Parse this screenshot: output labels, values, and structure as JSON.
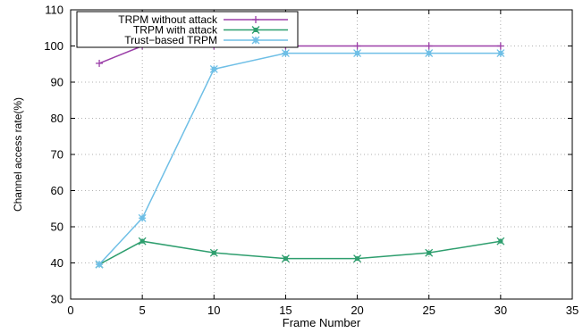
{
  "chart_data": {
    "type": "line",
    "title": "",
    "xlabel": "Frame Number",
    "ylabel": "Channel access rate(%)",
    "xlim": [
      0,
      35
    ],
    "ylim": [
      30,
      110
    ],
    "xticks": [
      0,
      5,
      10,
      15,
      20,
      25,
      30,
      35
    ],
    "yticks": [
      30,
      40,
      50,
      60,
      70,
      80,
      90,
      100,
      110
    ],
    "grid": true,
    "legend_position": "top-left",
    "x": [
      2,
      5,
      10,
      15,
      20,
      25,
      30
    ],
    "series": [
      {
        "name": "TRPM without attack",
        "marker": "plus",
        "color": "#9b3fa8",
        "values": [
          95.2,
          100,
          100,
          100,
          100,
          100,
          100
        ]
      },
      {
        "name": "TRPM with attack",
        "marker": "cross",
        "color": "#2e9e6e",
        "values": [
          39.6,
          46.0,
          42.8,
          41.2,
          41.2,
          42.8,
          46.0
        ]
      },
      {
        "name": "Trust−based TRPM",
        "marker": "asterisk",
        "color": "#6fbfe6",
        "values": [
          39.6,
          52.4,
          93.6,
          98.0,
          98.0,
          98.0,
          98.0
        ]
      }
    ]
  }
}
